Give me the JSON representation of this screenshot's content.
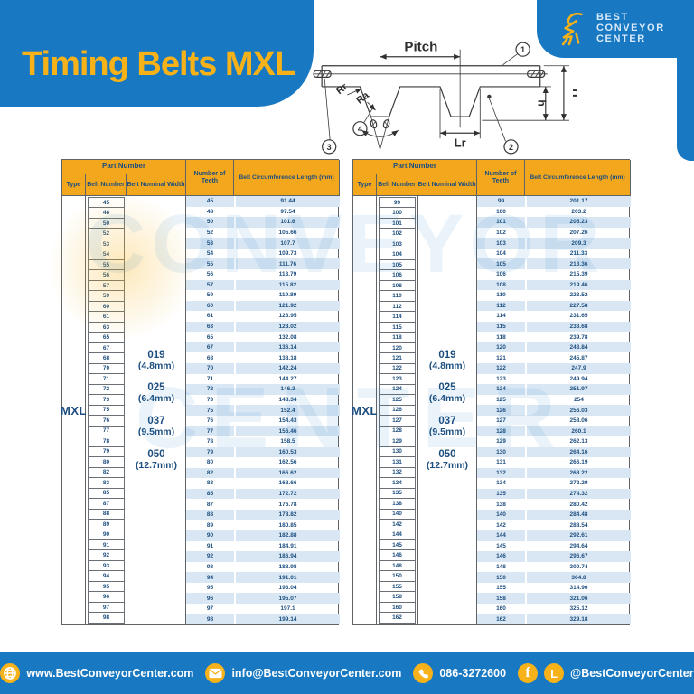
{
  "colors": {
    "blue": "#1878c2",
    "yellow": "#f7b219",
    "header_yellow": "#f3a71d",
    "navy": "#1d4e7f",
    "stripe": "#d9e7f4"
  },
  "page": {
    "title": "Timing Belts MXL"
  },
  "logo": {
    "line1": "BEST",
    "line2": "CONVEYOR",
    "line3": "CENTER"
  },
  "watermark": {
    "line1": "CONVEYOR",
    "line2": "CENTER"
  },
  "diagram": {
    "pitch": "Pitch",
    "rr": "Rr",
    "ra": "Ra",
    "lr": "Lr",
    "big_h": "H",
    "small_h": "h",
    "c1": "1",
    "c2": "2",
    "c3": "3",
    "c4": "4"
  },
  "table": {
    "part_number": "Part Number",
    "type": "Type",
    "belt_number": "Belt Number",
    "belt_nominal_width": "Belt Nominal Width",
    "teeth": "Number of Teeth",
    "circumference": "Belt Circumference Length (mm)",
    "type_value": "MXL",
    "widths": [
      {
        "code": "019",
        "mm": "(4.8mm)"
      },
      {
        "code": "025",
        "mm": "(6.4mm)"
      },
      {
        "code": "037",
        "mm": "(9.5mm)"
      },
      {
        "code": "050",
        "mm": "(12.7mm)"
      }
    ]
  },
  "left_rows": [
    [
      "45",
      "91.44"
    ],
    [
      "48",
      "97.54"
    ],
    [
      "50",
      "101.6"
    ],
    [
      "52",
      "105.66"
    ],
    [
      "53",
      "107.7"
    ],
    [
      "54",
      "109.73"
    ],
    [
      "55",
      "111.76"
    ],
    [
      "56",
      "113.79"
    ],
    [
      "57",
      "115.82"
    ],
    [
      "59",
      "119.89"
    ],
    [
      "60",
      "121.92"
    ],
    [
      "61",
      "123.95"
    ],
    [
      "63",
      "128.02"
    ],
    [
      "65",
      "132.08"
    ],
    [
      "67",
      "136.14"
    ],
    [
      "68",
      "138.18"
    ],
    [
      "70",
      "142.24"
    ],
    [
      "71",
      "144.27"
    ],
    [
      "72",
      "146.3"
    ],
    [
      "73",
      "148.34"
    ],
    [
      "75",
      "152.4"
    ],
    [
      "76",
      "154.43"
    ],
    [
      "77",
      "156.46"
    ],
    [
      "78",
      "158.5"
    ],
    [
      "79",
      "160.53"
    ],
    [
      "80",
      "162.56"
    ],
    [
      "82",
      "166.62"
    ],
    [
      "83",
      "168.66"
    ],
    [
      "85",
      "172.72"
    ],
    [
      "87",
      "176.78"
    ],
    [
      "88",
      "178.82"
    ],
    [
      "89",
      "180.85"
    ],
    [
      "90",
      "182.88"
    ],
    [
      "91",
      "184.91"
    ],
    [
      "92",
      "186.94"
    ],
    [
      "93",
      "188.98"
    ],
    [
      "94",
      "191.01"
    ],
    [
      "95",
      "193.04"
    ],
    [
      "96",
      "195.07"
    ],
    [
      "97",
      "197.1"
    ],
    [
      "98",
      "199.14"
    ]
  ],
  "right_rows": [
    [
      "99",
      "201.17"
    ],
    [
      "100",
      "203.2"
    ],
    [
      "101",
      "205.23"
    ],
    [
      "102",
      "207.26"
    ],
    [
      "103",
      "209.3"
    ],
    [
      "104",
      "211.33"
    ],
    [
      "105",
      "213.36"
    ],
    [
      "106",
      "215.39"
    ],
    [
      "108",
      "219.46"
    ],
    [
      "110",
      "223.52"
    ],
    [
      "112",
      "227.58"
    ],
    [
      "114",
      "231.65"
    ],
    [
      "115",
      "233.68"
    ],
    [
      "118",
      "239.78"
    ],
    [
      "120",
      "243.84"
    ],
    [
      "121",
      "245.87"
    ],
    [
      "122",
      "247.9"
    ],
    [
      "123",
      "249.94"
    ],
    [
      "124",
      "251.97"
    ],
    [
      "125",
      "254"
    ],
    [
      "126",
      "256.03"
    ],
    [
      "127",
      "258.06"
    ],
    [
      "128",
      "260.1"
    ],
    [
      "129",
      "262.13"
    ],
    [
      "130",
      "264.16"
    ],
    [
      "131",
      "266.19"
    ],
    [
      "132",
      "268.22"
    ],
    [
      "134",
      "272.29"
    ],
    [
      "135",
      "274.32"
    ],
    [
      "138",
      "280.42"
    ],
    [
      "140",
      "284.48"
    ],
    [
      "142",
      "288.54"
    ],
    [
      "144",
      "292.61"
    ],
    [
      "145",
      "294.64"
    ],
    [
      "146",
      "296.67"
    ],
    [
      "148",
      "300.74"
    ],
    [
      "150",
      "304.8"
    ],
    [
      "155",
      "314.96"
    ],
    [
      "158",
      "321.06"
    ],
    [
      "160",
      "325.12"
    ],
    [
      "162",
      "329.18"
    ]
  ],
  "footer": {
    "website": "www.BestConveyorCenter.com",
    "email": "info@BestConveyorCenter.com",
    "phone": "086-3272600",
    "social": "@BestConveyorCenter"
  }
}
